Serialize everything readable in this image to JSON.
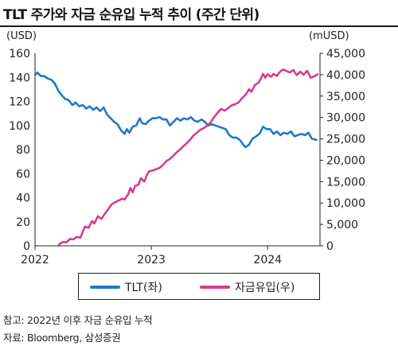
{
  "header": {
    "title": "TLT 주가와 자금 순유입 누적 추이 (주간 단위)"
  },
  "footer": {
    "note": "참고: 2022년 이후 자금 순유입 누적",
    "source": "자료: Bloomberg, 삼성증권"
  },
  "colors": {
    "tlt": "#1f78c8",
    "flow": "#d63c8c",
    "axis": "#222222",
    "grid": "#bdbdbd"
  },
  "chart_data": {
    "type": "line",
    "title": "TLT 주가와 자금 순유입 누적 추이 (주간 단위)",
    "left_axis": {
      "unit": "(USD)",
      "ylim": [
        0,
        160
      ],
      "ticks": [
        "0",
        "20",
        "40",
        "60",
        "80",
        "100",
        "120",
        "140",
        "160"
      ]
    },
    "right_axis": {
      "unit": "(mUSD)",
      "ylim": [
        0,
        45000
      ],
      "ticks": [
        "0",
        "5,000",
        "10,000",
        "15,000",
        "20,000",
        "25,000",
        "30,000",
        "35,000",
        "40,000",
        "45,000"
      ]
    },
    "x_axis": {
      "range": [
        2022.0,
        2024.45
      ],
      "tick_labels": [
        "2022",
        "2023",
        "2024"
      ],
      "tick_values": [
        2022.0,
        2023.0,
        2024.0
      ]
    },
    "grid": false,
    "legend": {
      "position": "bottom"
    },
    "series": [
      {
        "name": "TLT(좌)",
        "axis": "left",
        "color": "#1f78c8",
        "points": [
          [
            2022.0,
            142
          ],
          [
            2022.02,
            144
          ],
          [
            2022.05,
            141
          ],
          [
            2022.08,
            141
          ],
          [
            2022.11,
            139
          ],
          [
            2022.14,
            138
          ],
          [
            2022.17,
            135
          ],
          [
            2022.2,
            129
          ],
          [
            2022.23,
            125
          ],
          [
            2022.26,
            122
          ],
          [
            2022.29,
            121
          ],
          [
            2022.32,
            117
          ],
          [
            2022.35,
            119
          ],
          [
            2022.38,
            116
          ],
          [
            2022.41,
            117
          ],
          [
            2022.44,
            114
          ],
          [
            2022.47,
            116
          ],
          [
            2022.5,
            113
          ],
          [
            2022.53,
            115
          ],
          [
            2022.56,
            112
          ],
          [
            2022.59,
            115
          ],
          [
            2022.62,
            109
          ],
          [
            2022.65,
            106
          ],
          [
            2022.68,
            103
          ],
          [
            2022.71,
            101
          ],
          [
            2022.74,
            96
          ],
          [
            2022.77,
            93
          ],
          [
            2022.79,
            97
          ],
          [
            2022.81,
            94
          ],
          [
            2022.84,
            99
          ],
          [
            2022.87,
            100
          ],
          [
            2022.9,
            106
          ],
          [
            2022.92,
            102
          ],
          [
            2022.95,
            101
          ],
          [
            2022.98,
            104
          ],
          [
            2023.01,
            106
          ],
          [
            2023.04,
            106
          ],
          [
            2023.07,
            107
          ],
          [
            2023.1,
            105
          ],
          [
            2023.13,
            105
          ],
          [
            2023.16,
            100
          ],
          [
            2023.19,
            103
          ],
          [
            2023.22,
            106
          ],
          [
            2023.25,
            104
          ],
          [
            2023.28,
            106
          ],
          [
            2023.31,
            105
          ],
          [
            2023.34,
            107
          ],
          [
            2023.37,
            104
          ],
          [
            2023.4,
            103
          ],
          [
            2023.43,
            105
          ],
          [
            2023.46,
            103
          ],
          [
            2023.49,
            100
          ],
          [
            2023.52,
            101
          ],
          [
            2023.55,
            100
          ],
          [
            2023.58,
            99
          ],
          [
            2023.61,
            98
          ],
          [
            2023.64,
            97
          ],
          [
            2023.67,
            92
          ],
          [
            2023.7,
            90
          ],
          [
            2023.73,
            90
          ],
          [
            2023.76,
            88
          ],
          [
            2023.79,
            84
          ],
          [
            2023.81,
            82
          ],
          [
            2023.84,
            84
          ],
          [
            2023.87,
            89
          ],
          [
            2023.9,
            91
          ],
          [
            2023.93,
            93
          ],
          [
            2023.96,
            99
          ],
          [
            2023.99,
            97
          ],
          [
            2024.02,
            97
          ],
          [
            2024.05,
            93
          ],
          [
            2024.08,
            95
          ],
          [
            2024.11,
            92
          ],
          [
            2024.14,
            94
          ],
          [
            2024.17,
            93
          ],
          [
            2024.2,
            95
          ],
          [
            2024.23,
            91
          ],
          [
            2024.26,
            92
          ],
          [
            2024.29,
            93
          ],
          [
            2024.32,
            92
          ],
          [
            2024.35,
            94
          ],
          [
            2024.38,
            89
          ],
          [
            2024.42,
            88
          ]
        ]
      },
      {
        "name": "자금유입(우)",
        "axis": "right",
        "color": "#d63c8c",
        "points": [
          [
            2022.2,
            0
          ],
          [
            2022.21,
            400
          ],
          [
            2022.24,
            900
          ],
          [
            2022.27,
            800
          ],
          [
            2022.3,
            1600
          ],
          [
            2022.33,
            1500
          ],
          [
            2022.36,
            2100
          ],
          [
            2022.39,
            1900
          ],
          [
            2022.41,
            3300
          ],
          [
            2022.43,
            4500
          ],
          [
            2022.46,
            4200
          ],
          [
            2022.49,
            5800
          ],
          [
            2022.51,
            5200
          ],
          [
            2022.54,
            6900
          ],
          [
            2022.57,
            6300
          ],
          [
            2022.6,
            7500
          ],
          [
            2022.63,
            8600
          ],
          [
            2022.66,
            9700
          ],
          [
            2022.69,
            10200
          ],
          [
            2022.72,
            10600
          ],
          [
            2022.75,
            11000
          ],
          [
            2022.77,
            10800
          ],
          [
            2022.8,
            12000
          ],
          [
            2022.82,
            13500
          ],
          [
            2022.84,
            12500
          ],
          [
            2022.86,
            14000
          ],
          [
            2022.89,
            14300
          ],
          [
            2022.91,
            15800
          ],
          [
            2022.94,
            15000
          ],
          [
            2022.96,
            16400
          ],
          [
            2022.98,
            17400
          ],
          [
            2023.01,
            17600
          ],
          [
            2023.04,
            17900
          ],
          [
            2023.07,
            18200
          ],
          [
            2023.1,
            18900
          ],
          [
            2023.13,
            19800
          ],
          [
            2023.16,
            20300
          ],
          [
            2023.19,
            21100
          ],
          [
            2023.22,
            21900
          ],
          [
            2023.25,
            22600
          ],
          [
            2023.28,
            23400
          ],
          [
            2023.31,
            24100
          ],
          [
            2023.34,
            25000
          ],
          [
            2023.36,
            25700
          ],
          [
            2023.39,
            26400
          ],
          [
            2023.42,
            27100
          ],
          [
            2023.45,
            27500
          ],
          [
            2023.48,
            28100
          ],
          [
            2023.51,
            28800
          ],
          [
            2023.54,
            30100
          ],
          [
            2023.57,
            31100
          ],
          [
            2023.6,
            32000
          ],
          [
            2023.63,
            31600
          ],
          [
            2023.66,
            32200
          ],
          [
            2023.69,
            32800
          ],
          [
            2023.72,
            33100
          ],
          [
            2023.75,
            33500
          ],
          [
            2023.78,
            34500
          ],
          [
            2023.81,
            35300
          ],
          [
            2023.84,
            36600
          ],
          [
            2023.86,
            36000
          ],
          [
            2023.89,
            37600
          ],
          [
            2023.92,
            38100
          ],
          [
            2023.94,
            39000
          ],
          [
            2023.96,
            40200
          ],
          [
            2023.98,
            39300
          ],
          [
            2024.0,
            40100
          ],
          [
            2024.03,
            39500
          ],
          [
            2024.05,
            40200
          ],
          [
            2024.08,
            39700
          ],
          [
            2024.1,
            40500
          ],
          [
            2024.13,
            41200
          ],
          [
            2024.16,
            40900
          ],
          [
            2024.19,
            40500
          ],
          [
            2024.22,
            41100
          ],
          [
            2024.25,
            39900
          ],
          [
            2024.28,
            40700
          ],
          [
            2024.31,
            40000
          ],
          [
            2024.34,
            40900
          ],
          [
            2024.37,
            39300
          ],
          [
            2024.4,
            39600
          ],
          [
            2024.43,
            40100
          ]
        ]
      }
    ]
  }
}
